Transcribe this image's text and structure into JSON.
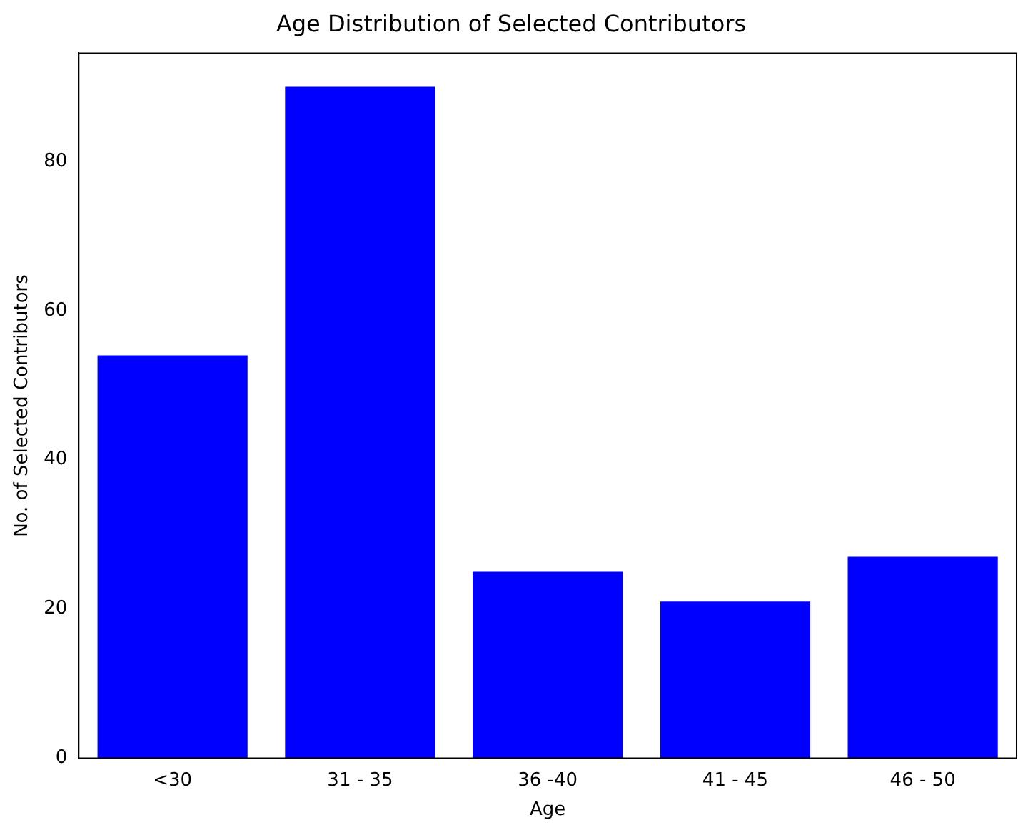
{
  "chart_data": {
    "type": "bar",
    "title": "Age Distribution of Selected Contributors",
    "xlabel": "Age",
    "ylabel": "No. of Selected Contributors",
    "categories": [
      "<30",
      "31 - 35",
      "36 -40",
      "41 - 45",
      "46 - 50"
    ],
    "values": [
      54,
      90,
      25,
      21,
      27
    ],
    "color": "#0000ff",
    "ylim": [
      0,
      94.5
    ],
    "yticks": [
      0,
      20,
      40,
      60,
      80
    ],
    "grid": false
  }
}
